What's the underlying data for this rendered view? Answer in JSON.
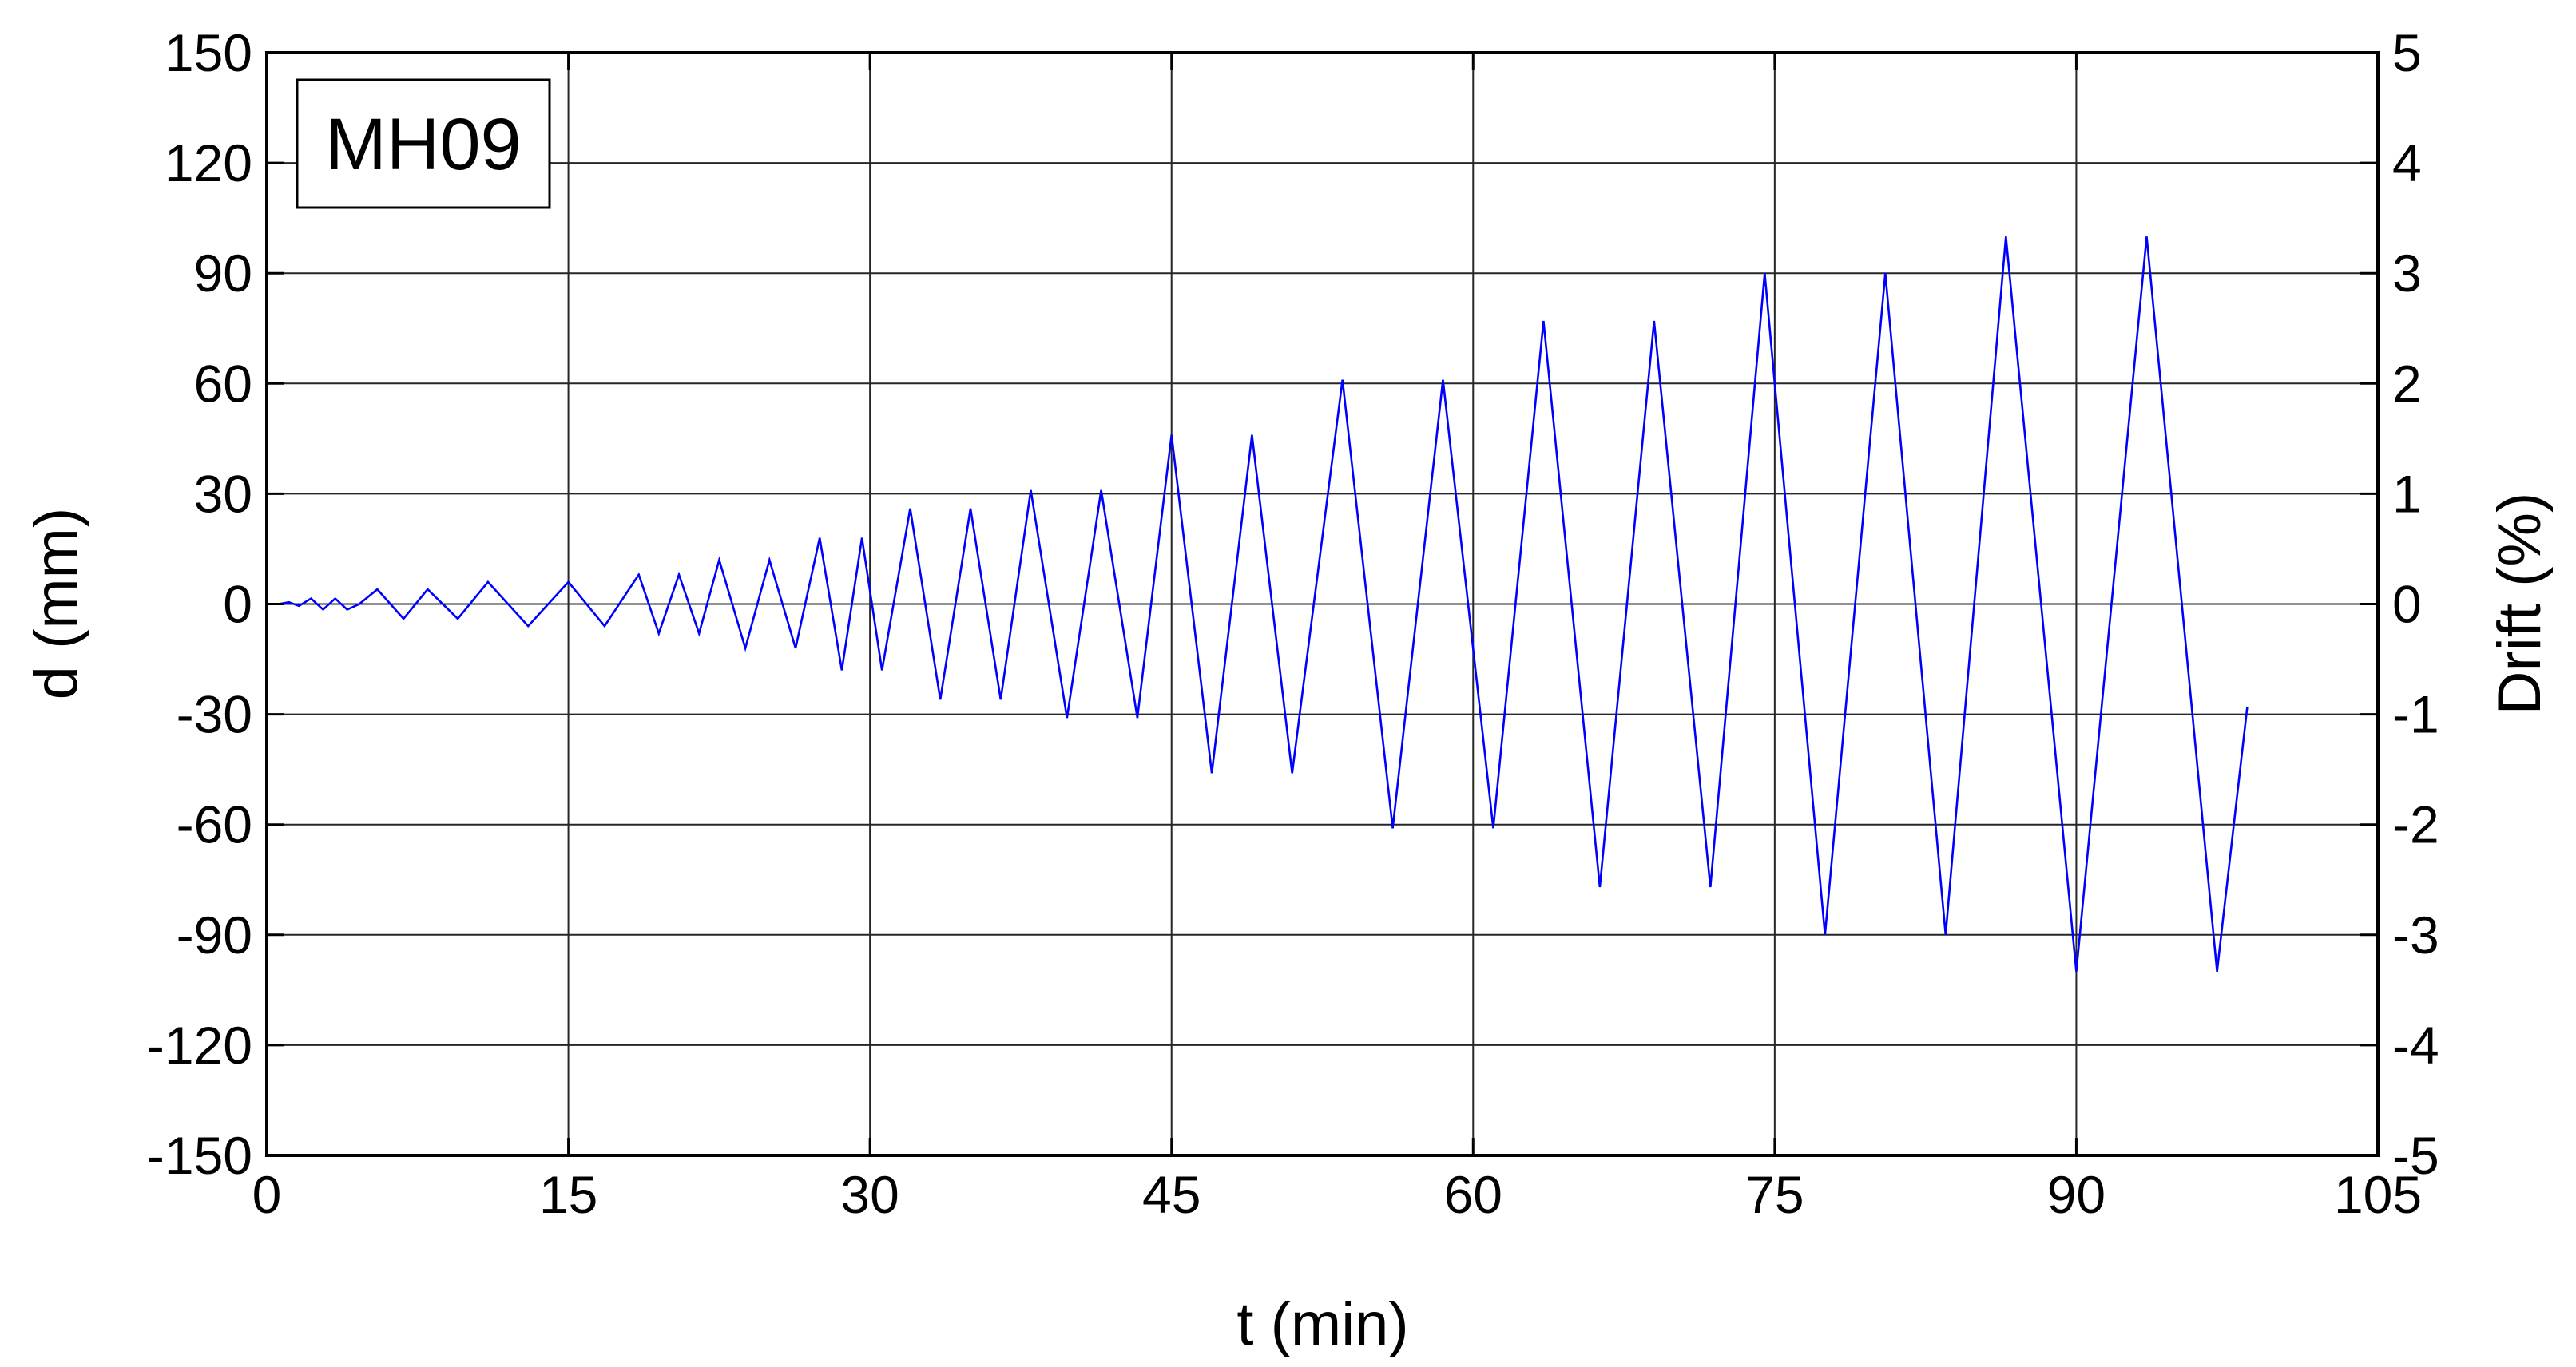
{
  "chart_data": {
    "type": "line",
    "annotation": "MH09",
    "xlabel": "t (min)",
    "ylabel": "d (mm)",
    "y2label": "Drift (%)",
    "xlim": [
      0,
      105
    ],
    "ylim": [
      -150,
      150
    ],
    "y2lim": [
      -5,
      5
    ],
    "x_ticks": [
      0,
      15,
      30,
      45,
      60,
      75,
      90,
      105
    ],
    "y_ticks": [
      -150,
      -120,
      -90,
      -60,
      -30,
      0,
      30,
      60,
      90,
      120,
      150
    ],
    "y2_ticks": [
      -5,
      -4,
      -3,
      -2,
      -1,
      0,
      1,
      2,
      3,
      4,
      5
    ],
    "x_tick_labels": [
      "0",
      "15",
      "30",
      "45",
      "60",
      "75",
      "90",
      "105"
    ],
    "y_tick_labels": [
      "-150",
      "-120",
      "-90",
      "-60",
      "-30",
      "0",
      "30",
      "60",
      "90",
      "120",
      "150"
    ],
    "y2_tick_labels": [
      "-5",
      "-4",
      "-3",
      "-2",
      "-1",
      "0",
      "1",
      "2",
      "3",
      "4",
      "5"
    ],
    "grid": true,
    "line_color": "#0000ff",
    "series": [
      {
        "x": [
          0,
          0.6,
          1.1,
          1.6,
          2.2,
          2.8,
          3.4,
          4.0,
          4.6,
          5.5,
          6.8,
          8.0,
          9.5,
          11.0,
          13.0,
          15.0,
          16.8,
          18.5,
          19.5,
          20.5,
          21.5,
          22.5,
          23.8,
          25.0,
          26.3,
          27.5,
          28.6,
          29.6,
          30.6,
          32.0,
          33.5,
          35.0,
          36.5,
          38.0,
          39.8,
          41.5,
          43.3,
          45.0,
          47.0,
          49.0,
          51.0,
          53.5,
          56.0,
          58.5,
          61.0,
          63.5,
          66.3,
          69.0,
          71.8,
          74.5,
          77.5,
          80.5,
          83.5,
          86.5,
          90.0,
          93.5,
          97.0,
          98.5
        ],
        "y": [
          0,
          0,
          0.5,
          -0.5,
          1.5,
          -1.5,
          1.5,
          -1.5,
          0,
          4,
          -4,
          4,
          -4,
          6,
          -6,
          6,
          -6,
          8,
          -8,
          8,
          -8,
          12,
          -12,
          12,
          -12,
          18,
          -18,
          18,
          -18,
          26,
          -26,
          26,
          -26,
          31,
          -31,
          31,
          -31,
          46,
          -46,
          46,
          -46,
          61,
          -61,
          61,
          -61,
          77,
          -77,
          77,
          -77,
          90,
          -90,
          90,
          -90,
          100,
          -100,
          100,
          -100,
          -28
        ]
      }
    ]
  }
}
